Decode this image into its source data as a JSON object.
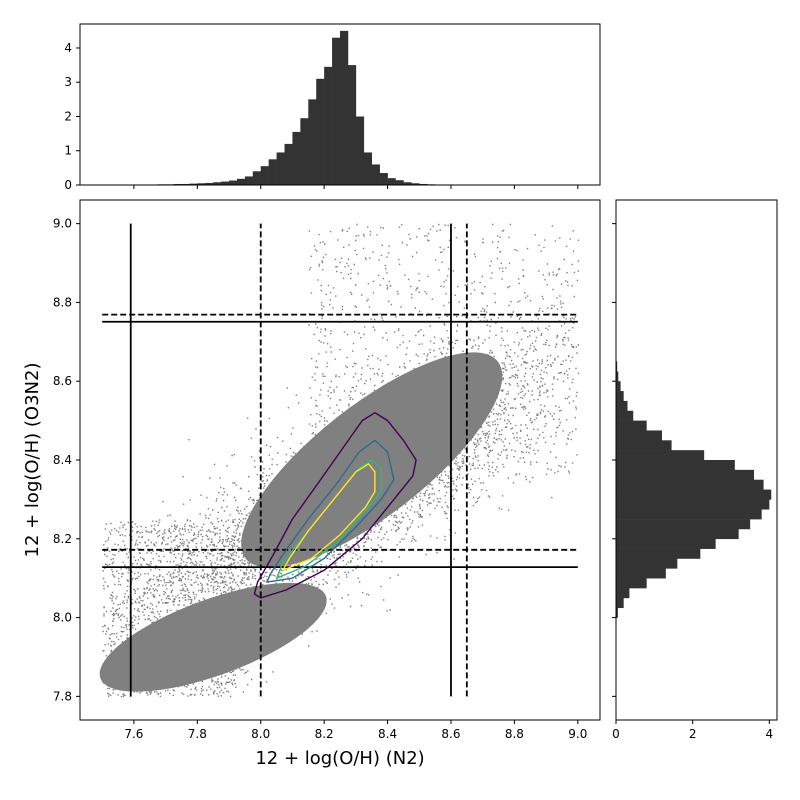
{
  "chart_data": [
    {
      "type": "scatter",
      "panel": "main",
      "xlabel": "12 + log(O/H)   (N2)",
      "ylabel": "12 + log(O/H)   (O3N2)",
      "xlim": [
        7.43,
        9.07
      ],
      "ylim": [
        7.74,
        9.06
      ],
      "xticks": [
        7.6,
        7.8,
        8.0,
        8.2,
        8.4,
        8.6,
        8.8,
        9.0
      ],
      "yticks": [
        7.8,
        8.0,
        8.2,
        8.4,
        8.6,
        8.8,
        9.0
      ],
      "x_tick_labels": [
        "7.6",
        "7.8",
        "8.0",
        "8.2",
        "8.4",
        "8.6",
        "8.8",
        "9.0"
      ],
      "y_tick_labels": [
        "7.8",
        "8.0",
        "8.2",
        "8.4",
        "8.6",
        "8.8",
        "9.0"
      ],
      "point_color": "#808080",
      "point_cloud": {
        "x_range": [
          7.5,
          9.0
        ],
        "y_range": [
          7.8,
          9.0
        ],
        "center": [
          8.3,
          8.33
        ]
      },
      "vertical_lines_solid": [
        7.59,
        8.6
      ],
      "vertical_lines_dashed": [
        8.0,
        8.65
      ],
      "horizontal_lines_solid": [
        8.128,
        8.751
      ],
      "horizontal_lines_dashed": [
        8.172,
        8.769
      ],
      "line_y_extent": [
        7.8,
        9.0
      ],
      "line_x_extent": [
        7.5,
        9.0
      ],
      "grid": false,
      "contours": [
        {
          "color": "#440154",
          "points": [
            [
              7.98,
              8.06
            ],
            [
              8.0,
              8.05
            ],
            [
              8.08,
              8.07
            ],
            [
              8.2,
              8.12
            ],
            [
              8.32,
              8.2
            ],
            [
              8.42,
              8.3
            ],
            [
              8.48,
              8.36
            ],
            [
              8.49,
              8.4
            ],
            [
              8.45,
              8.45
            ],
            [
              8.4,
              8.5
            ],
            [
              8.36,
              8.52
            ],
            [
              8.32,
              8.5
            ],
            [
              8.25,
              8.42
            ],
            [
              8.18,
              8.34
            ],
            [
              8.1,
              8.25
            ],
            [
              8.04,
              8.16
            ],
            [
              7.99,
              8.09
            ]
          ]
        },
        {
          "color": "#31688e",
          "points": [
            [
              8.02,
              8.09
            ],
            [
              8.1,
              8.1
            ],
            [
              8.2,
              8.15
            ],
            [
              8.3,
              8.23
            ],
            [
              8.38,
              8.3
            ],
            [
              8.42,
              8.35
            ],
            [
              8.4,
              8.42
            ],
            [
              8.36,
              8.45
            ],
            [
              8.31,
              8.42
            ],
            [
              8.24,
              8.34
            ],
            [
              8.15,
              8.25
            ],
            [
              8.07,
              8.16
            ],
            [
              8.03,
              8.11
            ]
          ]
        },
        {
          "color": "#35b779",
          "points": [
            [
              8.05,
              8.1
            ],
            [
              8.14,
              8.13
            ],
            [
              8.24,
              8.19
            ],
            [
              8.33,
              8.27
            ],
            [
              8.38,
              8.32
            ],
            [
              8.38,
              8.38
            ],
            [
              8.35,
              8.4
            ],
            [
              8.31,
              8.38
            ],
            [
              8.23,
              8.3
            ],
            [
              8.14,
              8.21
            ],
            [
              8.07,
              8.14
            ]
          ]
        },
        {
          "color": "#fde725",
          "points": [
            [
              8.07,
              8.12
            ],
            [
              8.16,
              8.15
            ],
            [
              8.25,
              8.21
            ],
            [
              8.33,
              8.28
            ],
            [
              8.36,
              8.32
            ],
            [
              8.36,
              8.37
            ],
            [
              8.34,
              8.39
            ],
            [
              8.3,
              8.37
            ],
            [
              8.23,
              8.3
            ],
            [
              8.15,
              8.22
            ],
            [
              8.09,
              8.15
            ]
          ]
        }
      ]
    },
    {
      "type": "bar",
      "panel": "top-histogram",
      "orientation": "vertical",
      "xlim": [
        7.43,
        9.07
      ],
      "ylim": [
        0,
        4.7
      ],
      "yticks": [
        0,
        1,
        2,
        3,
        4
      ],
      "y_tick_labels": [
        "0",
        "1",
        "2",
        "3",
        "4"
      ],
      "bar_color": "#333333",
      "bin_edges": [
        7.5,
        7.525,
        7.55,
        7.575,
        7.6,
        7.625,
        7.65,
        7.675,
        7.7,
        7.725,
        7.75,
        7.775,
        7.8,
        7.825,
        7.85,
        7.875,
        7.9,
        7.925,
        7.95,
        7.975,
        8.0,
        8.025,
        8.05,
        8.075,
        8.1,
        8.125,
        8.15,
        8.175,
        8.2,
        8.225,
        8.25,
        8.275,
        8.3,
        8.325,
        8.35,
        8.375,
        8.4,
        8.425,
        8.45,
        8.475,
        8.5,
        8.525,
        8.55,
        8.575,
        8.6,
        8.625,
        8.65,
        8.675,
        8.7,
        8.725,
        8.75,
        8.775,
        8.8,
        8.825,
        8.85,
        8.875,
        8.9,
        8.925,
        8.95,
        8.975,
        9.0
      ],
      "values": [
        0,
        0,
        0,
        0,
        0,
        0,
        0.01,
        0.02,
        0.02,
        0.03,
        0.03,
        0.04,
        0.05,
        0.06,
        0.08,
        0.1,
        0.13,
        0.18,
        0.25,
        0.4,
        0.55,
        0.75,
        0.95,
        1.2,
        1.55,
        1.95,
        2.5,
        3.1,
        3.45,
        4.3,
        4.5,
        3.5,
        2.0,
        0.95,
        0.6,
        0.35,
        0.2,
        0.14,
        0.08,
        0.05,
        0.03,
        0.02,
        0.01,
        0,
        0,
        0,
        0,
        0,
        0,
        0,
        0,
        0,
        0,
        0,
        0,
        0,
        0,
        0,
        0,
        0
      ]
    },
    {
      "type": "bar",
      "panel": "right-histogram",
      "orientation": "horizontal",
      "ylim": [
        7.74,
        9.06
      ],
      "xlim": [
        0,
        4.2
      ],
      "xticks": [
        0,
        2,
        4
      ],
      "x_tick_labels": [
        "0",
        "2",
        "4"
      ],
      "bar_color": "#333333",
      "bin_edges": [
        7.8,
        7.825,
        7.85,
        7.875,
        7.9,
        7.925,
        7.95,
        7.975,
        8.0,
        8.025,
        8.05,
        8.075,
        8.1,
        8.125,
        8.15,
        8.175,
        8.2,
        8.225,
        8.25,
        8.275,
        8.3,
        8.325,
        8.35,
        8.375,
        8.4,
        8.425,
        8.45,
        8.475,
        8.5,
        8.525,
        8.55,
        8.575,
        8.6,
        8.625,
        8.65
      ],
      "values": [
        0,
        0,
        0,
        0,
        0,
        0,
        0,
        0,
        0.05,
        0.2,
        0.35,
        0.8,
        1.3,
        1.6,
        2.2,
        2.6,
        3.2,
        3.5,
        3.8,
        4.0,
        4.05,
        3.85,
        3.6,
        3.1,
        2.3,
        1.45,
        1.2,
        0.8,
        0.45,
        0.3,
        0.2,
        0.12,
        0.06,
        0.03
      ]
    }
  ]
}
